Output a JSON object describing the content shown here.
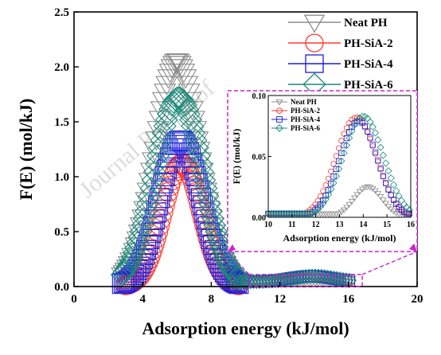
{
  "watermark": "Journal Pre-proof",
  "chart_data": [
    {
      "type": "line",
      "xlabel": "Adsorption energy (kJ/mol)",
      "ylabel": "F(E) (mol/kJ)",
      "xlim": [
        0,
        20
      ],
      "ylim": [
        0,
        2.5
      ],
      "xticks": [
        0,
        4,
        8,
        12,
        16,
        20
      ],
      "yticks": [
        0.0,
        0.5,
        1.0,
        1.5,
        2.0,
        2.5
      ],
      "xtick_labels": [
        "0",
        "4",
        "8",
        "12",
        "16",
        "20"
      ],
      "ytick_labels": [
        "0.0",
        "0.5",
        "1.0",
        "1.5",
        "2.0",
        "2.5"
      ],
      "legend_position": "top-right",
      "series": [
        {
          "name": "Neat PH",
          "marker": "triangle-down",
          "color": "#8c8c8c",
          "peak_x": 6.0,
          "peak_y": 2.05,
          "sigma": 1.3
        },
        {
          "name": "PH-SiA-2",
          "marker": "circle",
          "color": "#ff3b2f",
          "peak_x": 6.3,
          "peak_y": 1.12,
          "sigma": 1.1
        },
        {
          "name": "PH-SiA-4",
          "marker": "square",
          "color": "#1a1adb",
          "peak_x": 6.2,
          "peak_y": 1.33,
          "sigma": 1.2
        },
        {
          "name": "PH-SiA-6",
          "marker": "diamond",
          "color": "#1a8a7a",
          "peak_x": 6.1,
          "peak_y": 1.72,
          "sigma": 1.4
        }
      ]
    },
    {
      "type": "line",
      "xlabel": "Adsorption energy (kJ/mol)",
      "ylabel": "F(E) (mol/kJ)",
      "xlim": [
        10,
        16
      ],
      "ylim": [
        0,
        0.1
      ],
      "xticks": [
        10,
        11,
        12,
        13,
        14,
        15,
        16
      ],
      "yticks": [
        0.0,
        0.05,
        0.1
      ],
      "xtick_labels": [
        "10",
        "11",
        "12",
        "13",
        "14",
        "15",
        "16"
      ],
      "ytick_labels": [
        "0.00",
        "0.05",
        "0.10"
      ],
      "legend_position": "top-left",
      "series": [
        {
          "name": "Neat PH",
          "marker": "triangle-down",
          "color": "#8c8c8c",
          "peak_x": 14.2,
          "peak_y": 0.025,
          "sigma": 0.6
        },
        {
          "name": "PH-SiA-2",
          "marker": "circle",
          "color": "#ff3b2f",
          "peak_x": 13.7,
          "peak_y": 0.082,
          "sigma": 0.85
        },
        {
          "name": "PH-SiA-4",
          "marker": "square",
          "color": "#1a1adb",
          "peak_x": 13.8,
          "peak_y": 0.079,
          "sigma": 0.8
        },
        {
          "name": "PH-SiA-6",
          "marker": "diamond",
          "color": "#1a8a7a",
          "peak_x": 14.0,
          "peak_y": 0.083,
          "sigma": 0.85
        }
      ]
    }
  ],
  "zoom_box": {
    "x0": 10.2,
    "x1": 16.8,
    "y0": 0.0,
    "y1": 0.11
  },
  "guide_color": "#d020d0"
}
